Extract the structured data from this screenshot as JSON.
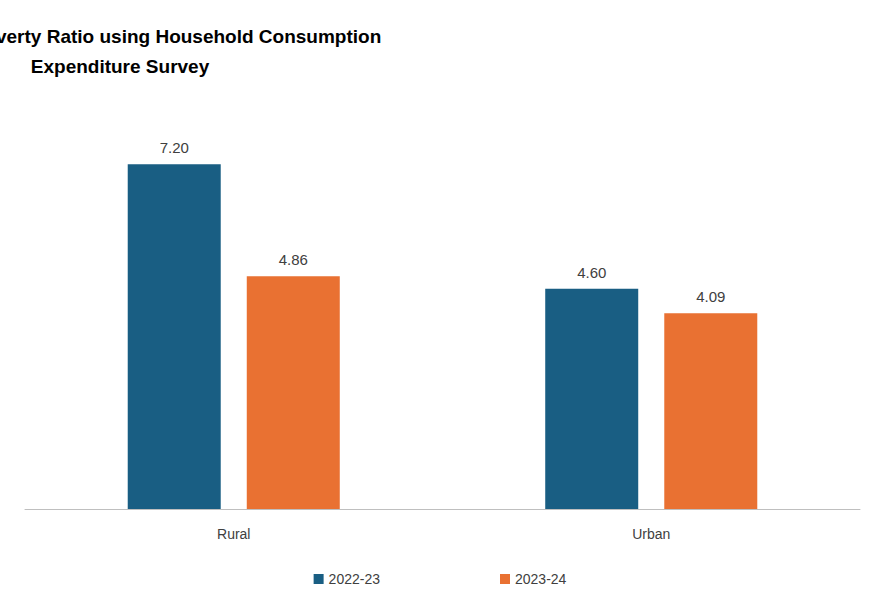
{
  "chart_data": {
    "type": "bar",
    "title": "Estimates of Poverty Ratio using Household Consumption Expenditure Survey",
    "categories": [
      "Rural",
      "Urban"
    ],
    "series": [
      {
        "name": "2022-23",
        "color": "#195e83",
        "values": [
          7.2,
          4.6
        ],
        "value_labels": [
          "7.20",
          "4.60"
        ]
      },
      {
        "name": "2023-24",
        "color": "#e97132",
        "values": [
          4.86,
          4.09
        ],
        "value_labels": [
          "4.86",
          "4.09"
        ]
      }
    ],
    "ylim": [
      0,
      8
    ],
    "yticks": [
      0,
      8
    ],
    "grid": false,
    "legend": "bottom",
    "data_labels": true,
    "tick_labels": "x"
  }
}
